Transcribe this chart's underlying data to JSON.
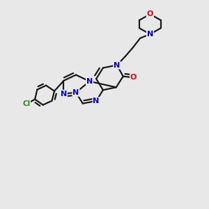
{
  "bg_color": "#e8e8e8",
  "bond_color": "#1a1a1a",
  "bond_width": 1.6,
  "N_color": "#0000ee",
  "O_color": "#ee0000",
  "Cl_color": "#228B22",
  "font_size_atom": 8.0,
  "fig_width": 3.0,
  "fig_height": 3.0,
  "xlim": [
    0.0,
    1.0
  ],
  "ylim": [
    0.0,
    1.0
  ]
}
